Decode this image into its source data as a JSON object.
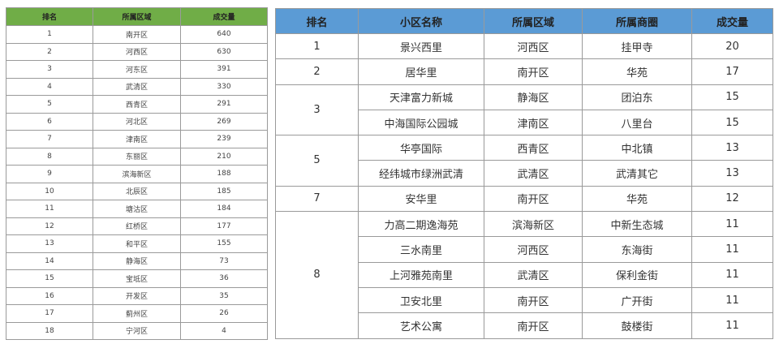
{
  "district_table": {
    "header_color": "#70ad47",
    "headers": [
      "排名",
      "所属区域",
      "成交量"
    ],
    "rows": [
      [
        "1",
        "南开区",
        "640"
      ],
      [
        "2",
        "河西区",
        "630"
      ],
      [
        "3",
        "河东区",
        "391"
      ],
      [
        "4",
        "武清区",
        "330"
      ],
      [
        "5",
        "西青区",
        "291"
      ],
      [
        "6",
        "河北区",
        "269"
      ],
      [
        "7",
        "津南区",
        "239"
      ],
      [
        "8",
        "东丽区",
        "210"
      ],
      [
        "9",
        "滨海新区",
        "188"
      ],
      [
        "10",
        "北辰区",
        "185"
      ],
      [
        "11",
        "塘沽区",
        "184"
      ],
      [
        "12",
        "红桥区",
        "177"
      ],
      [
        "13",
        "和平区",
        "155"
      ],
      [
        "14",
        "静海区",
        "73"
      ],
      [
        "15",
        "宝坻区",
        "36"
      ],
      [
        "16",
        "开发区",
        "35"
      ],
      [
        "17",
        "蓟州区",
        "26"
      ],
      [
        "18",
        "宁河区",
        "4"
      ]
    ]
  },
  "community_table": {
    "header_color": "#5b9bd5",
    "headers": [
      "排名",
      "小区名称",
      "所属区域",
      "所属商圈",
      "成交量"
    ],
    "groups": [
      {
        "rank": "1",
        "rows": [
          [
            "景兴西里",
            "河西区",
            "挂甲寺",
            "20"
          ]
        ]
      },
      {
        "rank": "2",
        "rows": [
          [
            "居华里",
            "南开区",
            "华苑",
            "17"
          ]
        ]
      },
      {
        "rank": "3",
        "rows": [
          [
            "天津富力新城",
            "静海区",
            "团泊东",
            "15"
          ],
          [
            "中海国际公园城",
            "津南区",
            "八里台",
            "15"
          ]
        ]
      },
      {
        "rank": "5",
        "rows": [
          [
            "华亭国际",
            "西青区",
            "中北镇",
            "13"
          ],
          [
            "经纬城市绿洲武清",
            "武清区",
            "武清其它",
            "13"
          ]
        ]
      },
      {
        "rank": "7",
        "rows": [
          [
            "安华里",
            "南开区",
            "华苑",
            "12"
          ]
        ]
      },
      {
        "rank": "8",
        "rows": [
          [
            "力高二期逸海苑",
            "滨海新区",
            "中新生态城",
            "11"
          ],
          [
            "三水南里",
            "河西区",
            "东海街",
            "11"
          ],
          [
            "上河雅苑南里",
            "武清区",
            "保利金街",
            "11"
          ],
          [
            "卫安北里",
            "南开区",
            "广开街",
            "11"
          ],
          [
            "艺术公寓",
            "南开区",
            "鼓楼街",
            "11"
          ]
        ]
      }
    ]
  }
}
